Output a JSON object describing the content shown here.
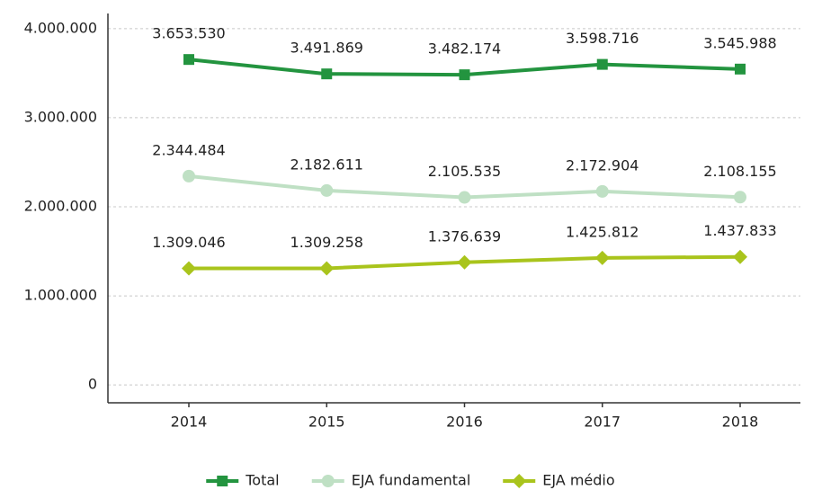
{
  "chart_data": {
    "type": "line",
    "categories": [
      "2014",
      "2015",
      "2016",
      "2017",
      "2018"
    ],
    "series": [
      {
        "name": "Total",
        "color": "#23943f",
        "marker": "square",
        "values": [
          3653530,
          3491869,
          3482174,
          3598716,
          3545988
        ],
        "value_labels": [
          "3.653.530",
          "3.491.869",
          "3.482.174",
          "3.598.716",
          "3.545.988"
        ]
      },
      {
        "name": "EJA fundamental",
        "color": "#bfe0c4",
        "marker": "circle",
        "values": [
          2344484,
          2182611,
          2105535,
          2172904,
          2108155
        ],
        "value_labels": [
          "2.344.484",
          "2.182.611",
          "2.105.535",
          "2.172.904",
          "2.108.155"
        ]
      },
      {
        "name": "EJA médio",
        "color": "#a9c41c",
        "marker": "diamond",
        "values": [
          1309046,
          1309258,
          1376639,
          1425812,
          1437833
        ],
        "value_labels": [
          "1.309.046",
          "1.309.258",
          "1.376.639",
          "1.425.812",
          "1.437.833"
        ]
      }
    ],
    "ylim": [
      -200000,
      4170000
    ],
    "yticks": [
      0,
      {
        "value": 1000000,
        "label": "1.000.000"
      },
      {
        "value": 2000000,
        "label": "2.000.000"
      },
      {
        "value": 3000000,
        "label": "3.000.000"
      },
      {
        "value": 4000000,
        "label": "4.000.000"
      }
    ],
    "grid": true,
    "legend": "bottom"
  }
}
